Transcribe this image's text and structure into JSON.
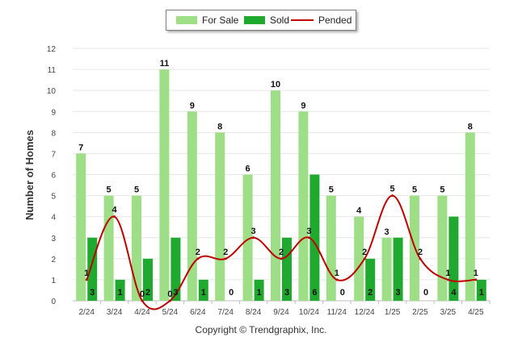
{
  "colors": {
    "for_sale": "#9ede86",
    "sold": "#1fa92e",
    "pended": "#c00000",
    "grid": "#e6e6e6"
  },
  "legend": {
    "items": [
      "For Sale",
      "Sold",
      "Pended"
    ]
  },
  "footer": {
    "copyright": "Copyright © Trendgraphix, Inc."
  },
  "chart_data": {
    "type": "bar",
    "title": "",
    "xlabel": "",
    "ylabel": "Number of Homes",
    "ylim": [
      0,
      12
    ],
    "yticks": [
      0,
      1,
      2,
      3,
      4,
      5,
      6,
      7,
      8,
      9,
      10,
      11,
      12
    ],
    "grid": true,
    "legend_position": "top-center",
    "categories": [
      "2/24",
      "3/24",
      "4/24",
      "5/24",
      "6/24",
      "7/24",
      "8/24",
      "9/24",
      "10/24",
      "11/24",
      "12/24",
      "1/25",
      "2/25",
      "3/25",
      "4/25"
    ],
    "series": [
      {
        "name": "For Sale",
        "type": "bar",
        "values": [
          7,
          5,
          5,
          11,
          9,
          8,
          6,
          10,
          9,
          5,
          4,
          3,
          5,
          5,
          8
        ]
      },
      {
        "name": "Sold",
        "type": "bar",
        "values": [
          3,
          1,
          2,
          3,
          1,
          0,
          1,
          3,
          6,
          0,
          2,
          3,
          0,
          4,
          1
        ]
      },
      {
        "name": "Pended",
        "type": "line",
        "values": [
          1,
          4,
          0,
          0,
          2,
          2,
          3,
          2,
          3,
          1,
          2,
          5,
          2,
          1,
          1
        ]
      }
    ]
  }
}
